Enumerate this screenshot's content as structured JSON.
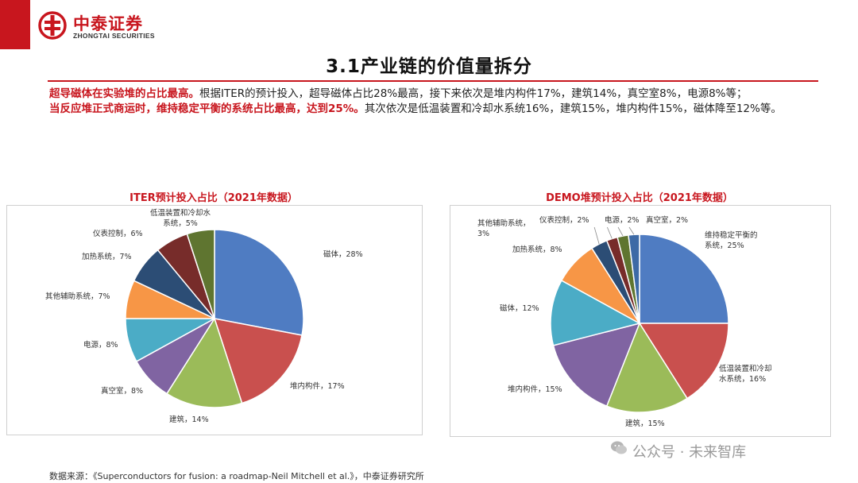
{
  "header": {
    "brand_cn": "中泰证券",
    "brand_en": "ZHONGTAI SECURITIES",
    "logo_icon": "zhongtai-logo-icon",
    "accent_color": "#c8161e"
  },
  "slide": {
    "title": "3.1产业链的价值量拆分",
    "para1_highlight": "超导磁体在实验堆的占比最高。",
    "para1_text": "根据ITER的预计投入，超导磁体占比28%最高，接下来依次是堆内构件17%，建筑14%，真空室8%，电源8%等；",
    "para2_highlight": "当反应堆正式商运时，维持稳定平衡的系统占比最高，达到25%。",
    "para2_text": "其次依次是低温装置和冷却水系统16%，建筑15%，堆内构件15%，磁体降至12%等。"
  },
  "footer": {
    "source": "数据来源：《Superconductors for fusion: a roadmap-Neil Mitchell et al.》，中泰证券研究所",
    "watermark": "公众号 · 未来智库"
  },
  "chart_data": [
    {
      "type": "pie",
      "title": "ITER预计投入占比（2021年数据）",
      "slices": [
        {
          "label": "磁体，28%",
          "value": 28,
          "color": "#4f7cc2"
        },
        {
          "label": "堆内构件，17%",
          "value": 17,
          "color": "#c9504e"
        },
        {
          "label": "建筑，14%",
          "value": 14,
          "color": "#9bbb59"
        },
        {
          "label": "真空室，8%",
          "value": 8,
          "color": "#8064a2"
        },
        {
          "label": "电源，8%",
          "value": 8,
          "color": "#4bacc6"
        },
        {
          "label": "其他辅助系统，7%",
          "value": 7,
          "color": "#f79646"
        },
        {
          "label": "加热系统，7%",
          "value": 7,
          "color": "#2c4d75"
        },
        {
          "label": "仪表控制，6%",
          "value": 6,
          "color": "#772c2a"
        },
        {
          "label": "低温装置和冷却水系统，5%",
          "value": 5,
          "color": "#5f7530"
        }
      ]
    },
    {
      "type": "pie",
      "title": "DEMO堆预计投入占比（2021年数据）",
      "slices": [
        {
          "label": "维持稳定平衡的系统，25%",
          "value": 25,
          "color": "#4f7cc2"
        },
        {
          "label": "低温装置和冷却水系统，16%",
          "value": 16,
          "color": "#c9504e"
        },
        {
          "label": "建筑，15%",
          "value": 15,
          "color": "#9bbb59"
        },
        {
          "label": "堆内构件，15%",
          "value": 15,
          "color": "#8064a2"
        },
        {
          "label": "磁体，12%",
          "value": 12,
          "color": "#4bacc6"
        },
        {
          "label": "加热系统，8%",
          "value": 8,
          "color": "#f79646"
        },
        {
          "label": "其他辅助系统，3%",
          "value": 3,
          "color": "#2c4d75"
        },
        {
          "label": "仪表控制，2%",
          "value": 2,
          "color": "#772c2a"
        },
        {
          "label": "电源，2%",
          "value": 2,
          "color": "#5f7530"
        },
        {
          "label": "真空室，2%",
          "value": 2,
          "color": "#3d6aa6"
        }
      ]
    }
  ]
}
